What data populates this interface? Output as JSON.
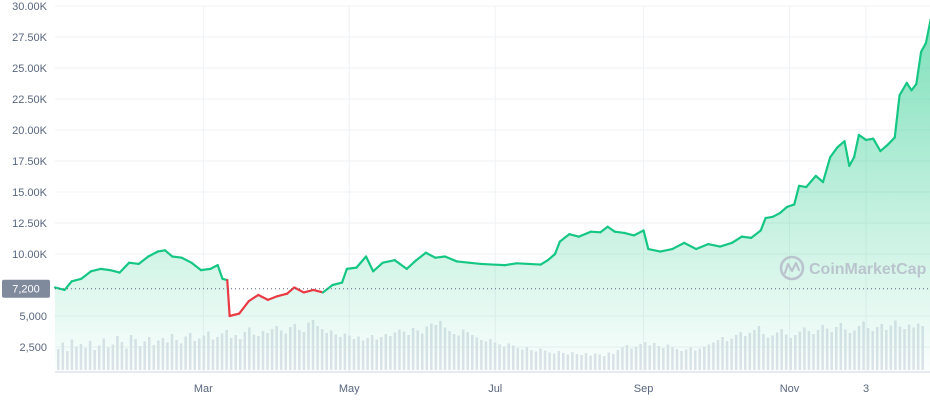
{
  "chart_data": {
    "type": "line",
    "title": "",
    "xlabel": "",
    "ylabel": "",
    "ylim": [
      0,
      30000
    ],
    "y_ticks": [
      {
        "value": 30000,
        "label": "30.00K"
      },
      {
        "value": 27500,
        "label": "27.50K"
      },
      {
        "value": 25000,
        "label": "25.00K"
      },
      {
        "value": 22500,
        "label": "22.50K"
      },
      {
        "value": 20000,
        "label": "20.00K"
      },
      {
        "value": 17500,
        "label": "17.50K"
      },
      {
        "value": 15000,
        "label": "15.00K"
      },
      {
        "value": 12500,
        "label": "12.50K"
      },
      {
        "value": 10000,
        "label": "10.00K"
      },
      {
        "value": 5000,
        "label": "5,000"
      },
      {
        "value": 2500,
        "label": "2,500"
      }
    ],
    "x_ticks": [
      {
        "date": "2020-03-01",
        "label": "Mar"
      },
      {
        "date": "2020-05-01",
        "label": "May"
      },
      {
        "date": "2020-07-01",
        "label": "Jul"
      },
      {
        "date": "2020-09-01",
        "label": "Sep"
      },
      {
        "date": "2020-11-01",
        "label": "Nov"
      },
      {
        "date": "2020-12-03",
        "label": "3"
      }
    ],
    "xlim": [
      "2019-12-30",
      "2020-12-28"
    ],
    "reference_line": {
      "value": 7200,
      "label": "7,200"
    },
    "grid": true,
    "colors": {
      "up": "#16c784",
      "down": "#ea3943",
      "volume": "#dfe3ea",
      "grid": "#eff2f5",
      "axis_text": "#58667e"
    },
    "price_series": {
      "name": "",
      "points": [
        [
          "2019-12-30",
          7300
        ],
        [
          "2020-01-03",
          7100
        ],
        [
          "2020-01-06",
          7800
        ],
        [
          "2020-01-10",
          8000
        ],
        [
          "2020-01-14",
          8600
        ],
        [
          "2020-01-18",
          8800
        ],
        [
          "2020-01-22",
          8700
        ],
        [
          "2020-01-26",
          8500
        ],
        [
          "2020-01-30",
          9300
        ],
        [
          "2020-02-03",
          9200
        ],
        [
          "2020-02-07",
          9800
        ],
        [
          "2020-02-11",
          10200
        ],
        [
          "2020-02-14",
          10300
        ],
        [
          "2020-02-17",
          9800
        ],
        [
          "2020-02-21",
          9700
        ],
        [
          "2020-02-25",
          9300
        ],
        [
          "2020-02-29",
          8700
        ],
        [
          "2020-03-04",
          8800
        ],
        [
          "2020-03-07",
          9100
        ],
        [
          "2020-03-09",
          8000
        ],
        [
          "2020-03-11",
          7900
        ],
        [
          "2020-03-12",
          5000
        ],
        [
          "2020-03-16",
          5200
        ],
        [
          "2020-03-20",
          6200
        ],
        [
          "2020-03-24",
          6700
        ],
        [
          "2020-03-28",
          6300
        ],
        [
          "2020-04-01",
          6600
        ],
        [
          "2020-04-05",
          6800
        ],
        [
          "2020-04-08",
          7300
        ],
        [
          "2020-04-12",
          6900
        ],
        [
          "2020-04-16",
          7100
        ],
        [
          "2020-04-20",
          6900
        ],
        [
          "2020-04-24",
          7500
        ],
        [
          "2020-04-28",
          7700
        ],
        [
          "2020-04-30",
          8800
        ],
        [
          "2020-05-04",
          8900
        ],
        [
          "2020-05-08",
          9800
        ],
        [
          "2020-05-11",
          8600
        ],
        [
          "2020-05-15",
          9300
        ],
        [
          "2020-05-20",
          9500
        ],
        [
          "2020-05-25",
          8800
        ],
        [
          "2020-05-29",
          9500
        ],
        [
          "2020-06-02",
          10100
        ],
        [
          "2020-06-06",
          9700
        ],
        [
          "2020-06-10",
          9800
        ],
        [
          "2020-06-15",
          9400
        ],
        [
          "2020-06-20",
          9300
        ],
        [
          "2020-06-25",
          9200
        ],
        [
          "2020-06-30",
          9150
        ],
        [
          "2020-07-05",
          9100
        ],
        [
          "2020-07-10",
          9250
        ],
        [
          "2020-07-15",
          9200
        ],
        [
          "2020-07-20",
          9150
        ],
        [
          "2020-07-23",
          9500
        ],
        [
          "2020-07-26",
          10000
        ],
        [
          "2020-07-28",
          11000
        ],
        [
          "2020-08-01",
          11600
        ],
        [
          "2020-08-05",
          11400
        ],
        [
          "2020-08-10",
          11800
        ],
        [
          "2020-08-14",
          11750
        ],
        [
          "2020-08-17",
          12200
        ],
        [
          "2020-08-20",
          11800
        ],
        [
          "2020-08-24",
          11700
        ],
        [
          "2020-08-28",
          11500
        ],
        [
          "2020-09-01",
          11900
        ],
        [
          "2020-09-03",
          10400
        ],
        [
          "2020-09-08",
          10200
        ],
        [
          "2020-09-13",
          10400
        ],
        [
          "2020-09-18",
          10900
        ],
        [
          "2020-09-23",
          10400
        ],
        [
          "2020-09-28",
          10800
        ],
        [
          "2020-10-03",
          10600
        ],
        [
          "2020-10-08",
          10900
        ],
        [
          "2020-10-12",
          11400
        ],
        [
          "2020-10-16",
          11300
        ],
        [
          "2020-10-20",
          11900
        ],
        [
          "2020-10-22",
          12900
        ],
        [
          "2020-10-25",
          13000
        ],
        [
          "2020-10-28",
          13300
        ],
        [
          "2020-10-31",
          13800
        ],
        [
          "2020-11-03",
          14000
        ],
        [
          "2020-11-05",
          15500
        ],
        [
          "2020-11-08",
          15400
        ],
        [
          "2020-11-12",
          16300
        ],
        [
          "2020-11-15",
          15800
        ],
        [
          "2020-11-18",
          17800
        ],
        [
          "2020-11-21",
          18600
        ],
        [
          "2020-11-24",
          19100
        ],
        [
          "2020-11-26",
          17100
        ],
        [
          "2020-11-28",
          17800
        ],
        [
          "2020-11-30",
          19600
        ],
        [
          "2020-12-03",
          19200
        ],
        [
          "2020-12-06",
          19300
        ],
        [
          "2020-12-09",
          18300
        ],
        [
          "2020-12-12",
          18800
        ],
        [
          "2020-12-15",
          19400
        ],
        [
          "2020-12-17",
          22800
        ],
        [
          "2020-12-20",
          23800
        ],
        [
          "2020-12-22",
          23200
        ],
        [
          "2020-12-24",
          23700
        ],
        [
          "2020-12-26",
          26300
        ],
        [
          "2020-12-28",
          27000
        ],
        [
          "2020-12-30",
          28900
        ]
      ]
    },
    "volume_series": {
      "name": "",
      "levels": [
        0.42,
        0.55,
        0.38,
        0.61,
        0.47,
        0.52,
        0.44,
        0.58,
        0.4,
        0.49,
        0.63,
        0.45,
        0.51,
        0.68,
        0.56,
        0.43,
        0.7,
        0.62,
        0.48,
        0.57,
        0.66,
        0.5,
        0.59,
        0.64,
        0.55,
        0.72,
        0.6,
        0.53,
        0.67,
        0.74,
        0.58,
        0.63,
        0.69,
        0.77,
        0.61,
        0.66,
        0.73,
        0.8,
        0.64,
        0.7,
        0.62,
        0.76,
        0.85,
        0.71,
        0.68,
        0.78,
        0.74,
        0.82,
        0.88,
        0.79,
        0.73,
        0.86,
        0.92,
        0.8,
        0.76,
        0.95,
        1.0,
        0.88,
        0.82,
        0.74,
        0.79,
        0.71,
        0.66,
        0.73,
        0.69,
        0.62,
        0.67,
        0.59,
        0.64,
        0.7,
        0.61,
        0.66,
        0.72,
        0.68,
        0.75,
        0.81,
        0.77,
        0.7,
        0.84,
        0.79,
        0.73,
        0.87,
        0.93,
        0.9,
        0.98,
        0.85,
        0.78,
        0.72,
        0.69,
        0.81,
        0.76,
        0.7,
        0.65,
        0.6,
        0.57,
        0.62,
        0.55,
        0.51,
        0.47,
        0.53,
        0.49,
        0.44,
        0.41,
        0.46,
        0.4,
        0.37,
        0.43,
        0.39,
        0.35,
        0.33,
        0.38,
        0.34,
        0.31,
        0.36,
        0.32,
        0.3,
        0.34,
        0.29,
        0.33,
        0.31,
        0.28,
        0.35,
        0.32,
        0.4,
        0.45,
        0.5,
        0.43,
        0.47,
        0.52,
        0.56,
        0.49,
        0.54,
        0.48,
        0.44,
        0.51,
        0.46,
        0.42,
        0.38,
        0.41,
        0.45,
        0.39,
        0.43,
        0.47,
        0.51,
        0.55,
        0.6,
        0.66,
        0.58,
        0.63,
        0.7,
        0.76,
        0.68,
        0.74,
        0.8,
        0.88,
        0.72,
        0.65,
        0.69,
        0.75,
        0.82,
        0.71,
        0.64,
        0.7,
        0.77,
        0.85,
        0.78,
        0.72,
        0.8,
        0.9,
        0.83,
        0.76,
        0.86,
        0.94,
        0.81,
        0.74,
        0.79,
        0.88,
        0.97,
        0.84,
        0.78,
        0.86,
        0.92,
        0.8,
        0.89,
        0.99,
        0.87,
        0.82,
        0.91,
        0.85,
        0.93,
        0.88
      ]
    }
  },
  "watermark": {
    "text": "CoinMarketCap",
    "icon": "coinmarketcap-logo-icon"
  }
}
